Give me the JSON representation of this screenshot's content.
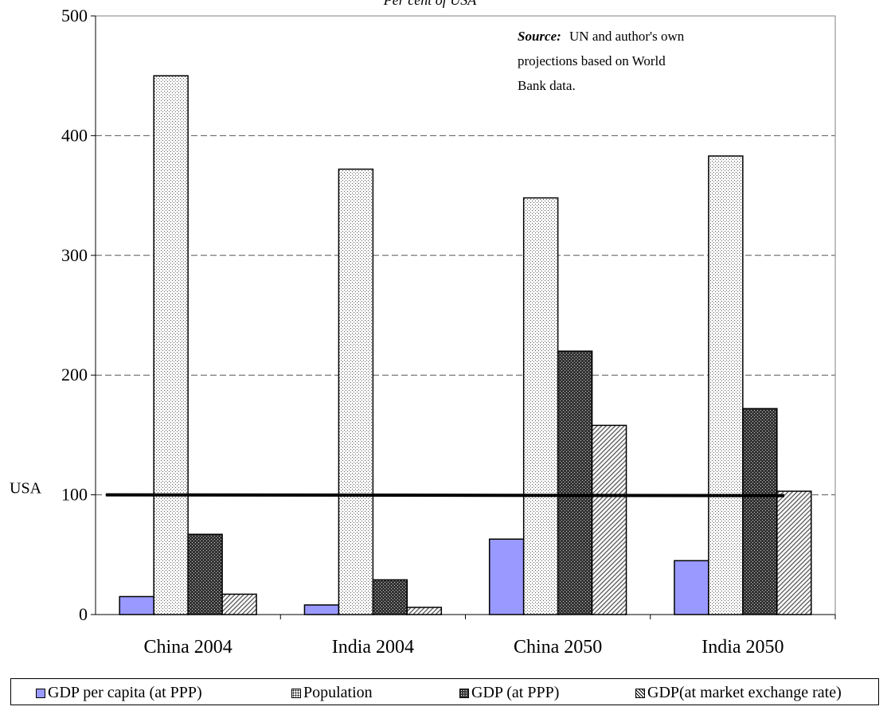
{
  "chart_data": {
    "type": "bar",
    "title": "Per cent of USA",
    "categories": [
      "China 2004",
      "India 2004",
      "China 2050",
      "India 2050"
    ],
    "series": [
      {
        "name": "GDP per capita (at PPP)",
        "values": [
          15,
          8,
          63,
          45
        ]
      },
      {
        "name": "Population",
        "values": [
          450,
          372,
          348,
          383
        ]
      },
      {
        "name": "GDP (at PPP)",
        "values": [
          67,
          29,
          220,
          172
        ]
      },
      {
        "name": "GDP(at market exchange rate)",
        "values": [
          17,
          6,
          158,
          103
        ]
      }
    ],
    "ylim": [
      0,
      500
    ],
    "yticks": [
      0,
      100,
      200,
      300,
      400,
      500
    ],
    "grid": true,
    "legend_position": "bottom",
    "reference_line": {
      "label": "USA",
      "value": 100
    },
    "annotation": {
      "bold": "Source:",
      "lines": [
        "UN and author's own",
        "projections based on World",
        "Bank data."
      ]
    },
    "colors": {
      "gdp_per_capita": "#9999ff",
      "population": "#ffffff",
      "gdp_ppp": "#3a3a3a",
      "gdp_mer": "#ffffff"
    }
  }
}
